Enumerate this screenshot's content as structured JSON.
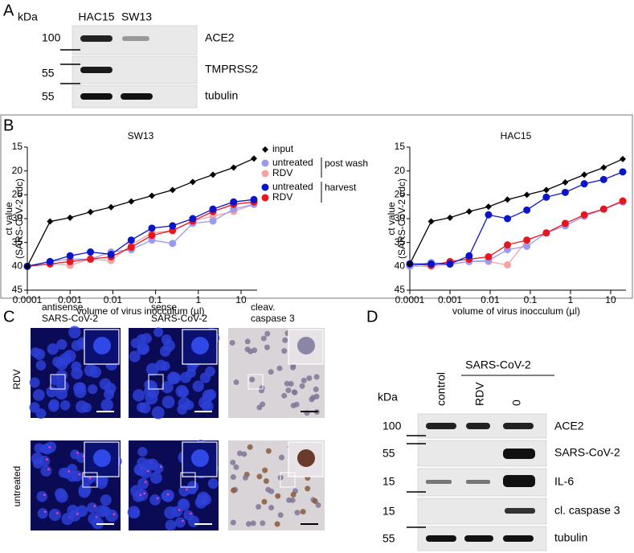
{
  "panel_a": {
    "letter": "A",
    "kda": "kDa",
    "lanes": [
      "HAC15",
      "SW13"
    ],
    "rows": [
      {
        "label": "ACE2",
        "marker": "100"
      },
      {
        "label": "TMPRSS2",
        "marker": "55"
      },
      {
        "label": "tubulin",
        "marker": "55"
      }
    ]
  },
  "panel_b": {
    "letter": "B",
    "legend_groups": [
      "post wash",
      "harvest"
    ]
  },
  "panel_c": {
    "letter": "C",
    "columns": [
      [
        "antisense",
        "SARS-CoV-2"
      ],
      [
        "sense",
        "SARS-CoV-2"
      ],
      [
        "cleav.",
        "caspase 3"
      ]
    ],
    "rows": [
      "RDV",
      "untreated"
    ]
  },
  "panel_d": {
    "letter": "D",
    "group": "SARS-CoV-2",
    "kda": "kDa",
    "lanes": [
      "control",
      "RDV",
      "0"
    ],
    "rows": [
      {
        "label": "ACE2",
        "marker": "100"
      },
      {
        "label": "SARS-CoV-2",
        "marker": "55"
      },
      {
        "label": "IL-6",
        "marker": "15"
      },
      {
        "label": "cl. caspase 3",
        "marker": "15"
      },
      {
        "label": "tubulin",
        "marker": "55"
      }
    ]
  },
  "chart_data": [
    {
      "type": "line",
      "title": "SW13",
      "x_label": "volume of virus inocculum (µl)",
      "y_label": [
        "ct value",
        "(SARS-CoV-2 cdc)"
      ],
      "x": [
        0.0001,
        0.00034,
        0.001,
        0.003,
        0.0091,
        0.027,
        0.082,
        0.25,
        0.74,
        2.2,
        6.7,
        20
      ],
      "x_log": true,
      "xlim": [
        0.0001,
        20
      ],
      "xticks": [
        0.0001,
        0.001,
        0.01,
        0.1,
        1,
        10
      ],
      "ylim": [
        45,
        15
      ],
      "yticks": [
        15,
        20,
        25,
        30,
        35,
        40,
        45
      ],
      "legend": true,
      "series": [
        {
          "name": "input",
          "color": "#000000",
          "marker": "diamond",
          "values": [
            40,
            30.6,
            29.8,
            28.6,
            27.6,
            26.4,
            25.2,
            24,
            22.3,
            20.8,
            19.3,
            17.4
          ]
        },
        {
          "name": "untreated",
          "color": "#9a9af0",
          "marker": "circle",
          "values": [
            40,
            39,
            38.5,
            38.5,
            37,
            36.5,
            34.5,
            35.2,
            31,
            30.5,
            28,
            27
          ]
        },
        {
          "name": "RDV",
          "color": "#f4a3a3",
          "marker": "circle",
          "values": [
            40,
            39.5,
            39.8,
            38.5,
            38.8,
            35.5,
            33,
            32.5,
            30.5,
            29.5,
            28.5,
            27
          ]
        },
        {
          "name": "untreated",
          "color": "#0a14c8",
          "marker": "circle",
          "values": [
            40,
            39,
            37.8,
            37,
            37.5,
            34.5,
            32,
            31.5,
            30,
            28,
            26.5,
            26
          ]
        },
        {
          "name": "RDV",
          "color": "#e8141e",
          "marker": "circle",
          "values": [
            40,
            39.5,
            39,
            38.5,
            38,
            36,
            33.5,
            32.5,
            30.5,
            28.5,
            27,
            26.5
          ]
        }
      ]
    },
    {
      "type": "line",
      "title": "HAC15",
      "x_label": "volume of virus inocculum (µl)",
      "y_label": [
        "ct value",
        "(SARS-CoV-2 cdc)"
      ],
      "x": [
        0.0001,
        0.00034,
        0.001,
        0.003,
        0.0091,
        0.027,
        0.082,
        0.25,
        0.74,
        2.2,
        6.7,
        20
      ],
      "x_log": true,
      "xlim": [
        0.0001,
        20
      ],
      "xticks": [
        0.0001,
        0.001,
        0.01,
        0.1,
        1,
        10
      ],
      "ylim": [
        45,
        15
      ],
      "yticks": [
        15,
        20,
        25,
        30,
        35,
        40,
        45
      ],
      "legend": false,
      "series": [
        {
          "name": "input",
          "color": "#000000",
          "marker": "diamond",
          "values": [
            39.5,
            30.6,
            29.8,
            28.5,
            27.5,
            26,
            25,
            24,
            22.4,
            20.8,
            19.3,
            17.5
          ]
        },
        {
          "name": "untreated",
          "color": "#9a9af0",
          "marker": "circle",
          "values": [
            40,
            39.2,
            39.5,
            39,
            38.8,
            36.5,
            35.8,
            33,
            31.5,
            29.5,
            28,
            26.5
          ]
        },
        {
          "name": "RDV",
          "color": "#f4a3a3",
          "marker": "circle",
          "values": [
            40,
            40,
            39.6,
            39,
            39,
            39.7,
            34.5,
            33,
            31.5,
            29.5,
            28,
            26.5
          ]
        },
        {
          "name": "untreated",
          "color": "#0a14c8",
          "marker": "circle",
          "values": [
            39.5,
            39.5,
            39.5,
            37.8,
            29.2,
            30,
            28.2,
            25.5,
            24.5,
            22.7,
            21.8,
            20.2
          ]
        },
        {
          "name": "RDV",
          "color": "#e8141e",
          "marker": "circle",
          "values": [
            39.5,
            39.8,
            39,
            38.5,
            38,
            35.5,
            34.5,
            33,
            31,
            29.2,
            28,
            26.3
          ]
        }
      ]
    }
  ]
}
